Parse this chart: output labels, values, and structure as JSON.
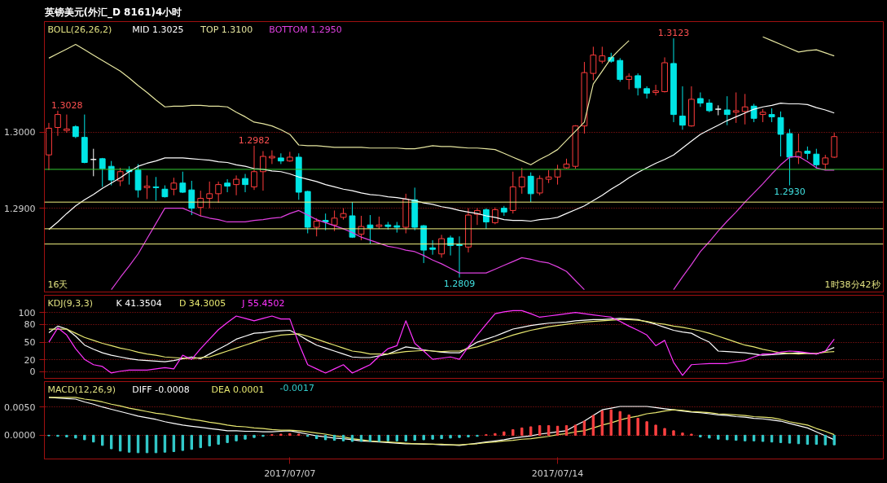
{
  "chart_data": [
    {
      "type": "candlestick",
      "title": "英镑美元(外汇_D 8161)4小时",
      "legend_title": "BOLL(26,26,2)",
      "legend": "top left",
      "grid": "y",
      "tick_labels": "y",
      "categories": [
        null,
        null,
        null,
        null,
        null,
        null,
        null,
        null,
        null,
        null,
        null,
        null,
        null,
        null,
        null,
        null,
        null,
        null,
        null,
        null,
        null,
        null,
        null,
        null,
        null,
        null,
        null,
        "2017/07/07",
        null,
        null,
        null,
        null,
        null,
        null,
        null,
        null,
        null,
        null,
        null,
        null,
        null,
        null,
        null,
        null,
        null,
        null,
        null,
        null,
        null,
        null,
        null,
        null,
        null,
        null,
        null,
        null,
        null,
        "2017/07/14",
        null,
        null,
        null,
        null,
        null,
        null,
        null,
        null,
        null,
        null,
        null,
        null,
        null,
        null,
        null,
        null,
        null,
        null,
        null,
        null,
        null,
        null,
        null,
        null,
        null,
        null,
        null,
        null,
        null,
        null,
        null
      ],
      "ohlc": [
        [
          1.297,
          1.3012,
          1.295,
          1.3005
        ],
        [
          1.3006,
          1.3028,
          1.2995,
          1.3023
        ],
        [
          1.3002,
          1.3023,
          1.2999,
          1.3004
        ],
        [
          1.3007,
          1.3009,
          1.2992,
          1.2994
        ],
        [
          1.2993,
          1.3023,
          1.2959,
          1.296
        ],
        [
          1.2964,
          1.2978,
          1.2942,
          1.2964
        ],
        [
          1.2965,
          1.2966,
          1.2928,
          1.2952
        ],
        [
          1.2955,
          1.2962,
          1.293,
          1.2937
        ],
        [
          1.2936,
          1.2953,
          1.2929,
          1.2948
        ],
        [
          1.295,
          1.2955,
          1.2931,
          1.2948
        ],
        [
          1.295,
          1.2958,
          1.2914,
          1.2924
        ],
        [
          1.2927,
          1.2943,
          1.2912,
          1.2929
        ],
        [
          1.2928,
          1.2941,
          1.291,
          1.2927
        ],
        [
          1.2925,
          1.293,
          1.2914,
          1.2915
        ],
        [
          1.2925,
          1.294,
          1.2917,
          1.2933
        ],
        [
          1.2933,
          1.2948,
          1.292,
          1.2921
        ],
        [
          1.2924,
          1.2936,
          1.2891,
          1.29
        ],
        [
          1.2901,
          1.2923,
          1.2889,
          1.2913
        ],
        [
          1.2913,
          1.2935,
          1.29,
          1.2919
        ],
        [
          1.2919,
          1.2935,
          1.2907,
          1.2931
        ],
        [
          1.2933,
          1.2938,
          1.2921,
          1.2929
        ],
        [
          1.2931,
          1.2943,
          1.2917,
          1.2938
        ],
        [
          1.2939,
          1.2945,
          1.2921,
          1.2931
        ],
        [
          1.2928,
          1.2982,
          1.2924,
          1.2948
        ],
        [
          1.2948,
          1.2975,
          1.2923,
          1.2968
        ],
        [
          1.2966,
          1.2976,
          1.2958,
          1.2968
        ],
        [
          1.2966,
          1.2972,
          1.2958,
          1.2962
        ],
        [
          1.2962,
          1.2974,
          1.2961,
          1.2967
        ],
        [
          1.2967,
          1.2972,
          1.2911,
          1.2921
        ],
        [
          1.2922,
          1.2923,
          1.2867,
          1.2875
        ],
        [
          1.2875,
          1.2887,
          1.2863,
          1.2883
        ],
        [
          1.2884,
          1.2893,
          1.2871,
          1.2882
        ],
        [
          1.2878,
          1.2897,
          1.287,
          1.2887
        ],
        [
          1.2888,
          1.29,
          1.2885,
          1.2893
        ],
        [
          1.289,
          1.2908,
          1.2861,
          1.2862
        ],
        [
          1.2866,
          1.289,
          1.2858,
          1.2876
        ],
        [
          1.2878,
          1.2891,
          1.2853,
          1.2874
        ],
        [
          1.2876,
          1.2889,
          1.2873,
          1.2878
        ],
        [
          1.2878,
          1.2882,
          1.2872,
          1.2876
        ],
        [
          1.2877,
          1.2882,
          1.2868,
          1.2875
        ],
        [
          1.2875,
          1.2919,
          1.2867,
          1.2912
        ],
        [
          1.2911,
          1.2927,
          1.2871,
          1.2875
        ],
        [
          1.2877,
          1.2878,
          1.2828,
          1.2845
        ],
        [
          1.2848,
          1.2858,
          1.2839,
          1.2846
        ],
        [
          1.284,
          1.2865,
          1.2835,
          1.286
        ],
        [
          1.2861,
          1.2864,
          1.2838,
          1.2851
        ],
        [
          1.2852,
          1.2863,
          1.2809,
          1.2851
        ],
        [
          1.2849,
          1.29,
          1.2842,
          1.2891
        ],
        [
          1.2892,
          1.29,
          1.2878,
          1.2897
        ],
        [
          1.2898,
          1.29,
          1.2873,
          1.2882
        ],
        [
          1.2881,
          1.2901,
          1.2879,
          1.2898
        ],
        [
          1.29,
          1.2903,
          1.289,
          1.2895
        ],
        [
          1.2897,
          1.2948,
          1.2893,
          1.2928
        ],
        [
          1.2928,
          1.2953,
          1.2919,
          1.2941
        ],
        [
          1.2942,
          1.2947,
          1.2908,
          1.2919
        ],
        [
          1.292,
          1.2943,
          1.2917,
          1.2939
        ],
        [
          1.2938,
          1.295,
          1.2933,
          1.2941
        ],
        [
          1.2941,
          1.2957,
          1.2931,
          1.2951
        ],
        [
          1.2953,
          1.2965,
          1.2952,
          1.2958
        ],
        [
          1.2955,
          1.3009,
          1.2952,
          1.3008
        ],
        [
          1.3008,
          1.3092,
          1.2998,
          1.3078
        ],
        [
          1.3077,
          1.3112,
          1.3068,
          1.3101
        ],
        [
          1.3093,
          1.3112,
          1.309,
          1.31
        ],
        [
          1.3098,
          1.3104,
          1.3091,
          1.3093
        ],
        [
          1.3094,
          1.3097,
          1.3066,
          1.3069
        ],
        [
          1.3069,
          1.3077,
          1.3056,
          1.3073
        ],
        [
          1.3074,
          1.3077,
          1.3048,
          1.3058
        ],
        [
          1.3057,
          1.306,
          1.3044,
          1.3051
        ],
        [
          1.3052,
          1.3062,
          1.3048,
          1.3054
        ],
        [
          1.3053,
          1.3098,
          1.3052,
          1.3091
        ],
        [
          1.309,
          1.3123,
          1.3013,
          1.3023
        ],
        [
          1.3021,
          1.306,
          1.3003,
          1.3009
        ],
        [
          1.3008,
          1.306,
          1.3007,
          1.3043
        ],
        [
          1.3044,
          1.3052,
          1.3033,
          1.3038
        ],
        [
          1.3038,
          1.3043,
          1.3026,
          1.3028
        ],
        [
          1.303,
          1.3035,
          1.3022,
          1.303
        ],
        [
          1.3029,
          1.3047,
          1.3009,
          1.3023
        ],
        [
          1.3026,
          1.3052,
          1.3012,
          1.3028
        ],
        [
          1.3027,
          1.305,
          1.301,
          1.3033
        ],
        [
          1.3034,
          1.3037,
          1.3013,
          1.3018
        ],
        [
          1.3023,
          1.303,
          1.3013,
          1.3026
        ],
        [
          1.3023,
          1.3031,
          1.3013,
          1.302
        ],
        [
          1.3019,
          1.3027,
          1.2968,
          1.2997
        ],
        [
          1.2998,
          1.3004,
          1.293,
          1.2967
        ],
        [
          1.2967,
          1.2998,
          1.2958,
          1.2974
        ],
        [
          1.2975,
          1.2981,
          1.2964,
          1.2972
        ],
        [
          1.2971,
          1.2978,
          1.2952,
          1.2957
        ],
        [
          1.2958,
          1.297,
          1.295,
          1.2966
        ],
        [
          1.2967,
          1.2999,
          1.2966,
          1.2994
        ]
      ],
      "series": [
        {
          "type": "line",
          "name": "MID 1.3025",
          "color": "#ffffff",
          "values": [
            1.2872,
            1.2882,
            1.2893,
            1.2903,
            1.2911,
            1.2918,
            1.2926,
            1.2933,
            1.294,
            1.2948,
            1.2955,
            1.2959,
            1.2962,
            1.2966,
            1.2966,
            1.2966,
            1.2965,
            1.2964,
            1.2963,
            1.2961,
            1.296,
            1.2957,
            1.2955,
            1.2952,
            1.2951,
            1.2949,
            1.2948,
            1.2945,
            1.2941,
            1.2938,
            1.2935,
            1.2931,
            1.2928,
            1.2925,
            1.2923,
            1.292,
            1.2918,
            1.2917,
            1.2915,
            1.2914,
            1.2912,
            1.291,
            1.2907,
            1.2905,
            1.2902,
            1.29,
            1.2897,
            1.2895,
            1.2893,
            1.289,
            1.2888,
            1.2885,
            1.2884,
            1.2884,
            1.2883,
            1.2885,
            1.2886,
            1.2888,
            1.2893,
            1.2898,
            1.2903,
            1.291,
            1.2917,
            1.2925,
            1.2932,
            1.294,
            1.2947,
            1.2953,
            1.2959,
            1.2964,
            1.297,
            1.2979,
            1.2988,
            1.2997,
            1.3003,
            1.3009,
            1.3015,
            1.302,
            1.3025,
            1.303,
            1.3033,
            1.3035,
            1.3038,
            1.3037,
            1.3037,
            1.3036,
            1.3032,
            1.3029,
            1.3025
          ]
        },
        {
          "type": "line",
          "name": "TOP 1.3100",
          "color": "#e6e6a0",
          "values": [
            1.3097,
            1.3103,
            1.3109,
            1.3115,
            1.3108,
            1.3101,
            1.3094,
            1.3087,
            1.308,
            1.3071,
            1.3061,
            1.3052,
            1.3042,
            1.3033,
            1.3034,
            1.3034,
            1.3035,
            1.3035,
            1.3034,
            1.3034,
            1.3033,
            1.3026,
            1.302,
            1.3013,
            1.3011,
            1.3008,
            1.3003,
            1.2997,
            1.2983,
            1.2982,
            1.2982,
            1.2981,
            1.298,
            1.298,
            1.298,
            1.298,
            1.2979,
            1.2979,
            1.2979,
            1.2979,
            1.2978,
            1.2978,
            1.298,
            1.2982,
            1.2981,
            1.2981,
            1.298,
            1.2979,
            1.2979,
            1.2978,
            1.2977,
            1.2972,
            1.2967,
            1.2962,
            1.2957,
            1.2964,
            1.297,
            1.2977,
            1.2989,
            1.3001,
            1.3013,
            1.3063,
            1.308,
            1.3097,
            1.3109,
            1.312,
            null,
            null,
            null,
            null,
            null,
            null,
            null,
            null,
            null,
            null,
            null,
            null,
            null,
            null,
            1.3125,
            1.312,
            1.3115,
            1.311,
            1.3105,
            1.3107,
            1.3108,
            1.3104,
            1.31
          ]
        },
        {
          "type": "line",
          "name": "BOTTOM 1.2950",
          "color": "#e040e0",
          "values": [
            null,
            null,
            null,
            null,
            null,
            null,
            null,
            1.2793,
            1.2809,
            1.2824,
            1.284,
            1.286,
            1.288,
            1.29,
            1.29,
            1.29,
            1.2895,
            1.289,
            1.2887,
            1.2885,
            1.2882,
            1.2882,
            1.2882,
            1.2884,
            1.2885,
            1.2887,
            1.2888,
            1.2893,
            1.2897,
            1.2891,
            1.2885,
            1.2881,
            1.2877,
            1.2873,
            1.2868,
            1.2862,
            1.2858,
            1.2854,
            1.285,
            1.2848,
            1.2845,
            1.2843,
            1.2838,
            1.2832,
            1.2827,
            1.2821,
            1.2815,
            1.2815,
            1.2815,
            1.2815,
            1.282,
            1.2825,
            1.283,
            1.2835,
            1.2833,
            1.283,
            1.2828,
            1.2823,
            1.2817,
            1.2805,
            1.2793,
            null,
            null,
            null,
            null,
            null,
            null,
            null,
            null,
            null,
            1.2793,
            1.281,
            1.2826,
            1.2843,
            1.2856,
            1.287,
            1.2883,
            1.2895,
            1.2908,
            1.292,
            1.2932,
            1.2945,
            1.2957,
            1.2967,
            1.2968,
            1.2961,
            1.2953,
            1.295,
            1.295
          ]
        }
      ],
      "ref_lines": [
        {
          "axis": "y",
          "value": 1.2951,
          "color": "#33cc33"
        },
        {
          "axis": "y",
          "value": 1.2908,
          "color": "#f0f080"
        },
        {
          "axis": "y",
          "value": 1.2873,
          "color": "#f0f080"
        },
        {
          "axis": "y",
          "value": 1.2853,
          "color": "#f0f080"
        }
      ],
      "annotations": [
        {
          "text": "1.3028",
          "y": 1.3028
        },
        {
          "text": "1.2982",
          "y": 1.2982
        },
        {
          "text": "1.2809",
          "y": 1.2809
        },
        {
          "text": "1.3123",
          "y": 1.3123
        },
        {
          "text": "1.2930",
          "y": 1.293
        },
        "16天",
        "1时38分42秒"
      ],
      "ylim": [
        1.279,
        1.3145
      ],
      "yticks": [
        {
          "value": 1.29,
          "label": "1.2900"
        },
        {
          "value": 1.3,
          "label": "1.3000"
        }
      ]
    },
    {
      "type": "line",
      "legend_title": "KDJ(9,3,3)",
      "legend": "top left",
      "grid": "y",
      "tick_labels": "y",
      "categories": [
        null,
        null,
        null,
        null,
        null,
        null,
        null,
        null,
        null,
        null,
        null,
        null,
        null,
        null,
        null,
        null,
        null,
        null,
        null,
        null,
        null,
        null,
        null,
        null,
        null,
        null,
        null,
        "2017/07/07",
        null,
        null,
        null,
        null,
        null,
        null,
        null,
        null,
        null,
        null,
        null,
        null,
        null,
        null,
        null,
        null,
        null,
        null,
        null,
        null,
        null,
        null,
        null,
        null,
        null,
        null,
        null,
        null,
        null,
        "2017/07/14",
        null,
        null,
        null,
        null,
        null,
        null,
        null,
        null,
        null,
        null,
        null,
        null,
        null,
        null,
        null,
        null,
        null,
        null,
        null,
        null,
        null,
        null,
        null,
        null,
        null,
        null,
        null,
        null,
        null,
        null,
        null
      ],
      "series": [
        {
          "name": "K 41.3504",
          "color": "#ffffff",
          "values": [
            66,
            77,
            72,
            60,
            45,
            38,
            32,
            28,
            25,
            22,
            20,
            19,
            18,
            17,
            19,
            22,
            25,
            22,
            30,
            38,
            46,
            55,
            60,
            65,
            66,
            68,
            69,
            70,
            62,
            53,
            45,
            40,
            35,
            30,
            25,
            24,
            24,
            27,
            30,
            36,
            42,
            40,
            37,
            35,
            33,
            32,
            32,
            41,
            50,
            55,
            60,
            66,
            72,
            75,
            78,
            80,
            82,
            83,
            84,
            86,
            87,
            88,
            88,
            89,
            90,
            89,
            88,
            84,
            80,
            75,
            70,
            67,
            65,
            57,
            50,
            35,
            34,
            33,
            32,
            30,
            28,
            29,
            30,
            31,
            32,
            31,
            30,
            35,
            41
          ]
        },
        {
          "name": "D 34.3005",
          "color": "#e8e870",
          "values": [
            72,
            72,
            72,
            65,
            58,
            53,
            48,
            44,
            40,
            37,
            33,
            30,
            28,
            25,
            24,
            23,
            22,
            24,
            25,
            30,
            35,
            40,
            45,
            50,
            55,
            59,
            62,
            63,
            64,
            60,
            55,
            50,
            45,
            40,
            35,
            33,
            30,
            30,
            30,
            32,
            34,
            35,
            36,
            35,
            34,
            35,
            35,
            39,
            42,
            47,
            52,
            57,
            62,
            66,
            70,
            73,
            76,
            78,
            80,
            82,
            84,
            85,
            86,
            87,
            88,
            88,
            87,
            85,
            82,
            80,
            77,
            75,
            72,
            69,
            65,
            60,
            55,
            50,
            45,
            42,
            38,
            35,
            32,
            31,
            30,
            31,
            31,
            33,
            34
          ]
        },
        {
          "name": "J 55.4502",
          "color": "#ff33ff",
          "values": [
            50,
            74,
            62,
            39,
            21,
            12,
            9,
            -2,
            1,
            3,
            3,
            3,
            5,
            7,
            5,
            28,
            21,
            39,
            55,
            71,
            83,
            94,
            90,
            86,
            90,
            94,
            89,
            89,
            48,
            12,
            5,
            -2,
            5,
            12,
            -2,
            5,
            12,
            26,
            39,
            44,
            86,
            48,
            35,
            21,
            23,
            25,
            21,
            42,
            62,
            80,
            98,
            101,
            103,
            103,
            98,
            92,
            94,
            96,
            98,
            100,
            98,
            96,
            94,
            92,
            85,
            77,
            70,
            62,
            44,
            53,
            16,
            -6,
            12,
            13,
            14,
            14,
            14,
            17,
            19,
            25,
            30,
            30,
            33,
            35,
            34,
            32,
            30,
            35,
            55
          ]
        }
      ],
      "ylim": [
        -11,
        129
      ],
      "yticks": [
        0,
        20,
        50,
        80,
        100
      ]
    },
    {
      "type": "line",
      "legend_title": "MACD(12,26,9)",
      "legend": "top left",
      "grid": "y",
      "categories": [
        null,
        null,
        null,
        null,
        null,
        null,
        null,
        null,
        null,
        null,
        null,
        null,
        null,
        null,
        null,
        null,
        null,
        null,
        null,
        null,
        null,
        null,
        null,
        null,
        null,
        null,
        null,
        "2017/07/07",
        null,
        null,
        null,
        null,
        null,
        null,
        null,
        null,
        null,
        null,
        null,
        null,
        null,
        null,
        null,
        null,
        null,
        null,
        null,
        null,
        null,
        null,
        null,
        null,
        null,
        null,
        null,
        null,
        null,
        "2017/07/14",
        null,
        null,
        null,
        null,
        null,
        null,
        null,
        null,
        null,
        null,
        null,
        null,
        null,
        null,
        null,
        null,
        null,
        null,
        null,
        null,
        null,
        null,
        null,
        null,
        null,
        null,
        null,
        null,
        null,
        null,
        null
      ],
      "series": [
        {
          "name": "DIFF -0.0008",
          "color": "#ffffff",
          "values": [
            0.0067,
            0.0066,
            0.0065,
            0.0064,
            0.0059,
            0.0055,
            0.005,
            0.0046,
            0.0042,
            0.0038,
            0.0034,
            0.0031,
            0.0028,
            0.0024,
            0.0021,
            0.0018,
            0.0016,
            0.0014,
            0.0012,
            0.001,
            0.0008,
            0.0008,
            0.0007,
            0.0007,
            0.0006,
            0.0006,
            0.0007,
            0.0008,
            0.0005,
            0.0002,
            -0.0001,
            -0.0003,
            -0.0005,
            -0.0006,
            -0.0008,
            -0.001,
            -0.0011,
            -0.0012,
            -0.0013,
            -0.0014,
            -0.0015,
            -0.0015,
            -0.0016,
            -0.0016,
            -0.0017,
            -0.0017,
            -0.0018,
            -0.0016,
            -0.0014,
            -0.0012,
            -0.001,
            -0.0008,
            -0.0005,
            -0.0003,
            -0.0001,
            0.0002,
            0.0004,
            0.0006,
            0.0008,
            0.0017,
            0.0025,
            0.0035,
            0.0045,
            0.0048,
            0.0051,
            0.0051,
            0.0051,
            0.0051,
            0.0049,
            0.0047,
            0.0045,
            0.0043,
            0.0041,
            0.004,
            0.0038,
            0.0036,
            0.0035,
            0.0033,
            0.0032,
            0.003,
            0.0029,
            0.0027,
            0.0025,
            0.0021,
            0.0017,
            0.0013,
            0.0006,
            -0.0001,
            -0.0008
          ]
        },
        {
          "name": "DEA 0.0001",
          "color": "#e8e870",
          "values": [
            0.0067,
            0.0067,
            0.0067,
            0.0067,
            0.0064,
            0.0062,
            0.0059,
            0.0055,
            0.0052,
            0.0048,
            0.0045,
            0.0042,
            0.0039,
            0.0037,
            0.0034,
            0.0031,
            0.0028,
            0.0026,
            0.0023,
            0.0021,
            0.0018,
            0.0016,
            0.0015,
            0.0013,
            0.0012,
            0.001,
            0.0009,
            0.0009,
            0.0008,
            0.0006,
            0.0004,
            0.0002,
            -0.0001,
            -0.0003,
            -0.0006,
            -0.0008,
            -0.001,
            -0.0011,
            -0.0012,
            -0.0013,
            -0.0014,
            -0.0015,
            -0.0015,
            -0.0016,
            -0.0016,
            -0.0017,
            -0.0017,
            -0.0016,
            -0.0015,
            -0.0013,
            -0.0012,
            -0.001,
            -0.0009,
            -0.0007,
            -0.0006,
            -0.0004,
            -0.0002,
            0.0001,
            0.0003,
            0.0006,
            0.0008,
            0.0013,
            0.0018,
            0.0022,
            0.0027,
            0.0031,
            0.0034,
            0.0038,
            0.004,
            0.0043,
            0.0045,
            0.0044,
            0.0042,
            0.0041,
            0.004,
            0.0038,
            0.0037,
            0.0036,
            0.0035,
            0.0033,
            0.0032,
            0.0031,
            0.0028,
            0.0024,
            0.0021,
            0.0018,
            0.0012,
            0.0007,
            0.0001
          ]
        },
        {
          "type": "bar",
          "name": "-0.0017",
          "color": "#33cccc",
          "values": [
            -0.0001,
            -0.0002,
            -0.0003,
            -0.0005,
            -0.0008,
            -0.0012,
            -0.0018,
            -0.0024,
            -0.0028,
            -0.003,
            -0.0031,
            -0.0031,
            -0.0031,
            -0.003,
            -0.0029,
            -0.0027,
            -0.0025,
            -0.0022,
            -0.0019,
            -0.0016,
            -0.0013,
            -0.001,
            -0.0007,
            -0.0004,
            -0.0002,
            0.0001,
            0.0002,
            0.0003,
            0.0002,
            -0.0002,
            -0.0006,
            -0.0008,
            -0.0009,
            -0.001,
            -0.0011,
            -0.0011,
            -0.0011,
            -0.0011,
            -0.001,
            -0.001,
            -0.001,
            -0.0009,
            -0.0008,
            -0.0007,
            -0.0006,
            -0.0005,
            -0.0004,
            -0.0003,
            -0.0002,
            0.0001,
            0.0003,
            0.0006,
            0.001,
            0.0013,
            0.0015,
            0.0017,
            0.0017,
            0.0016,
            0.0017,
            0.0018,
            0.0025,
            0.0035,
            0.0043,
            0.0045,
            0.0042,
            0.0036,
            0.003,
            0.0024,
            0.0018,
            0.0012,
            0.0008,
            0.0004,
            0.0002,
            -0.0003,
            -0.0005,
            -0.0007,
            -0.0008,
            -0.0009,
            -0.001,
            -0.001,
            -0.0011,
            -0.0012,
            -0.0013,
            -0.0014,
            -0.0015,
            -0.0016,
            -0.0016,
            -0.0017,
            -0.0017
          ],
          "colors": [
            "#33cccc",
            "#33cccc",
            "#33cccc",
            "#33cccc",
            "#33cccc",
            "#33cccc",
            "#33cccc",
            "#33cccc",
            "#33cccc",
            "#33cccc",
            "#33cccc",
            "#33cccc",
            "#33cccc",
            "#33cccc",
            "#33cccc",
            "#33cccc",
            "#33cccc",
            "#33cccc",
            "#33cccc",
            "#33cccc",
            "#33cccc",
            "#33cccc",
            "#33cccc",
            "#33cccc",
            "#33cccc",
            "#ff4040",
            "#ff4040",
            "#ff4040",
            "#ff4040",
            "#33cccc",
            "#33cccc",
            "#33cccc",
            "#33cccc",
            "#33cccc",
            "#33cccc",
            "#33cccc",
            "#33cccc",
            "#33cccc",
            "#33cccc",
            "#33cccc",
            "#33cccc",
            "#33cccc",
            "#33cccc",
            "#33cccc",
            "#33cccc",
            "#33cccc",
            "#33cccc",
            "#33cccc",
            "#33cccc",
            "#ff4040",
            "#ff4040",
            "#ff4040",
            "#ff4040",
            "#ff4040",
            "#ff4040",
            "#ff4040",
            "#ff4040",
            "#ff4040",
            "#ff4040",
            "#ff4040",
            "#ff4040",
            "#ff4040",
            "#ff4040",
            "#ff4040",
            "#ff4040",
            "#ff4040",
            "#ff4040",
            "#ff4040",
            "#ff4040",
            "#ff4040",
            "#ff4040",
            "#ff4040",
            "#ff4040",
            "#33cccc",
            "#33cccc",
            "#33cccc",
            "#33cccc",
            "#33cccc",
            "#33cccc",
            "#33cccc",
            "#33cccc",
            "#33cccc",
            "#33cccc",
            "#33cccc",
            "#33cccc",
            "#33cccc",
            "#33cccc",
            "#33cccc",
            "#33cccc"
          ]
        }
      ],
      "ylim": [
        -0.0042,
        0.0095
      ],
      "yticks": [
        {
          "value": 0,
          "label": "0.0000"
        },
        {
          "value": 0.005,
          "label": "0.0050"
        }
      ]
    }
  ]
}
